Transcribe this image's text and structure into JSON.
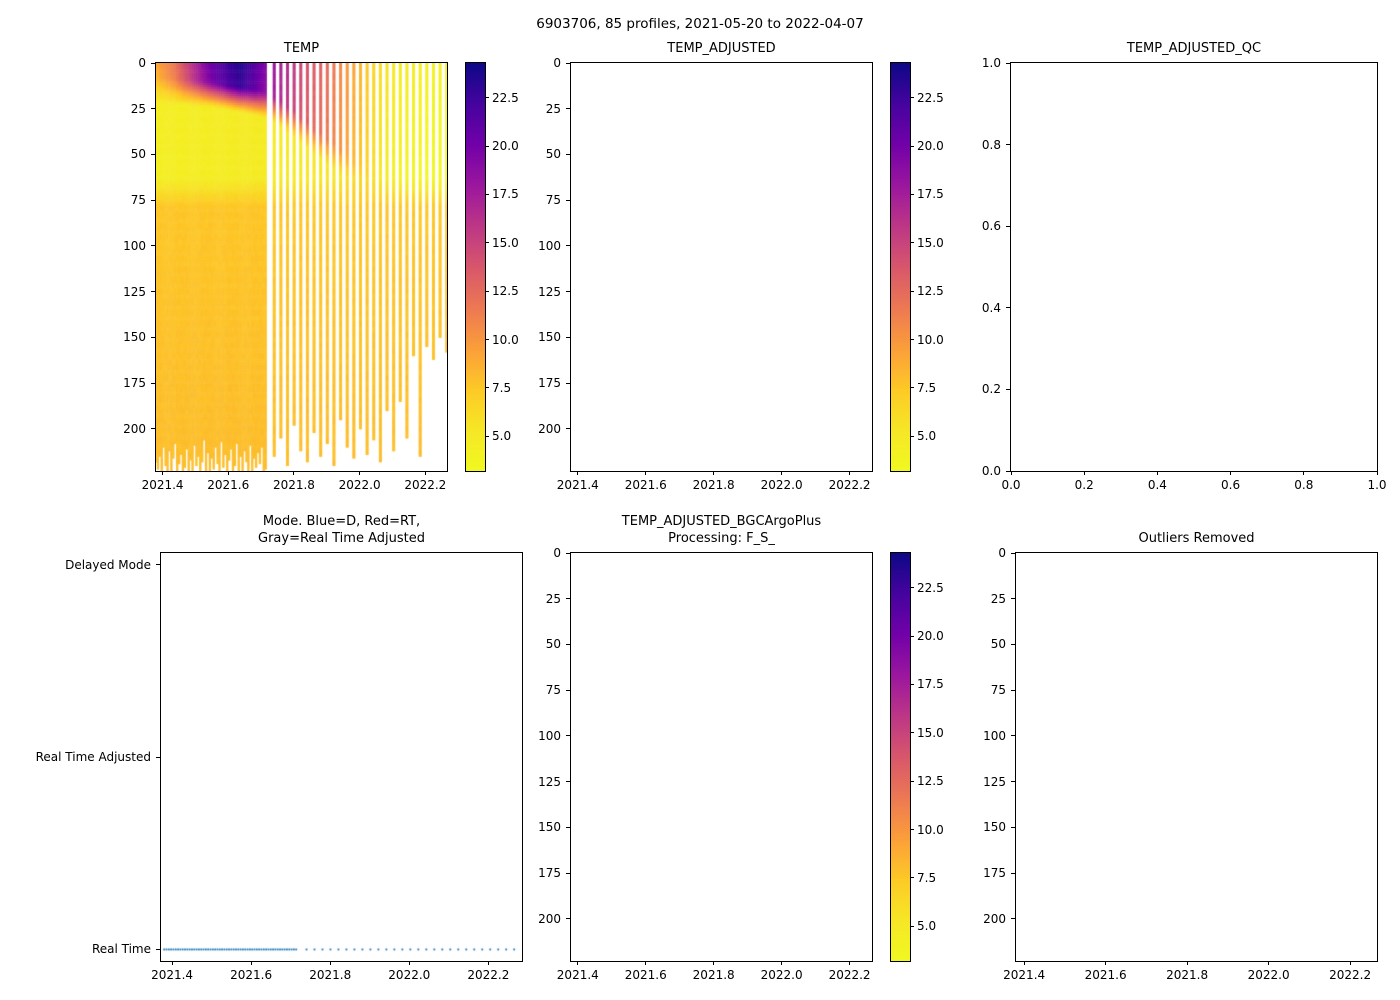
{
  "figure": {
    "title": "6903706, 85 profiles, 2021-05-20 to 2022-04-07",
    "background": "#ffffff"
  },
  "colormap": {
    "name": "plasma_reversed",
    "vmin": 3.2,
    "vmax": 24.3,
    "stops": [
      [
        0.0,
        "#0d0887"
      ],
      [
        0.1,
        "#46039f"
      ],
      [
        0.2,
        "#7201a8"
      ],
      [
        0.3,
        "#9c179e"
      ],
      [
        0.4,
        "#bd3786"
      ],
      [
        0.5,
        "#d8576b"
      ],
      [
        0.6,
        "#ed7953"
      ],
      [
        0.7,
        "#fb9f3a"
      ],
      [
        0.8,
        "#fdca26"
      ],
      [
        0.9,
        "#f6e726"
      ],
      [
        1.0,
        "#f0f921"
      ]
    ]
  },
  "colorbar": {
    "tick_values": [
      5.0,
      7.5,
      10.0,
      12.5,
      15.0,
      17.5,
      20.0,
      22.5
    ],
    "tick_labels": [
      "5.0",
      "7.5",
      "10.0",
      "12.5",
      "15.0",
      "17.5",
      "20.0",
      "22.5"
    ]
  },
  "axes_common": {
    "time_xlim": [
      2021.38,
      2022.266
    ],
    "time_tick_values": [
      2021.4,
      2021.6,
      2021.8,
      2022.0,
      2022.2
    ],
    "time_tick_labels": [
      "2021.4",
      "2021.6",
      "2021.8",
      "2022.0",
      "2022.2"
    ],
    "depth_ylim": [
      0,
      223
    ],
    "depth_tick_values": [
      0,
      25,
      50,
      75,
      100,
      125,
      150,
      175,
      200
    ],
    "depth_tick_labels": [
      "0",
      "25",
      "50",
      "75",
      "100",
      "125",
      "150",
      "175",
      "200"
    ],
    "unit_tick_values": [
      0.0,
      0.2,
      0.4,
      0.6,
      0.8,
      1.0
    ],
    "unit_tick_labels": [
      "0.0",
      "0.2",
      "0.4",
      "0.6",
      "0.8",
      "1.0"
    ]
  },
  "panels": {
    "temp": {
      "title": "TEMP"
    },
    "temp_adjusted": {
      "title": "TEMP_ADJUSTED"
    },
    "temp_adjusted_qc": {
      "title": "TEMP_ADJUSTED_QC"
    },
    "mode": {
      "title_line1": "Mode. Blue=D, Red=RT,",
      "title_line2": "Gray=Real Time Adjusted",
      "categories": [
        "Real Time",
        "Real Time Adjusted",
        "Delayed Mode"
      ],
      "dot_color": "#1f77b4"
    },
    "bgc": {
      "title_line1": "TEMP_ADJUSTED_BGCArgoPlus",
      "title_line2": "Processing: F_S_"
    },
    "outliers": {
      "title": "Outliers Removed"
    }
  },
  "chart_data": [
    {
      "id": "TEMP",
      "type": "heatmap",
      "title": "TEMP",
      "xlim": [
        2021.38,
        2022.266
      ],
      "ylim": [
        223,
        0
      ],
      "colormap": "plasma_reversed",
      "clim": [
        3.2,
        24.3
      ],
      "n_profiles": 85,
      "profiles": {
        "dense": {
          "t_start": 2021.38,
          "t_step": 0.00586,
          "count": 58
        },
        "sparse": {
          "t_start": 2021.74,
          "t_step": 0.0202,
          "count": 27
        },
        "bottom_depths": [
          218,
          222,
          215,
          225,
          210,
          220,
          228,
          212,
          224,
          216,
          208,
          226,
          219,
          214,
          230,
          221,
          211,
          223,
          217,
          227,
          209,
          220,
          215,
          232,
          218,
          206,
          224,
          213,
          228,
          216,
          222,
          210,
          219,
          225,
          207,
          221,
          214,
          229,
          217,
          211,
          226,
          220,
          208,
          223,
          215,
          230,
          212,
          218,
          224,
          209,
          227,
          216,
          221,
          213,
          219,
          210,
          225,
          222,
          215,
          205,
          220,
          198,
          212,
          218,
          202,
          215,
          208,
          220,
          195,
          210,
          216,
          200,
          214,
          206,
          218,
          190,
          212,
          185,
          205,
          160,
          215,
          155,
          162,
          150,
          158
        ]
      },
      "field": {
        "sst": [
          [
            2021.38,
            9.0
          ],
          [
            2021.44,
            12.0
          ],
          [
            2021.5,
            17.0
          ],
          [
            2021.55,
            20.5
          ],
          [
            2021.6,
            22.5
          ],
          [
            2021.64,
            23.5
          ],
          [
            2021.68,
            21.5
          ],
          [
            2021.72,
            19.0
          ],
          [
            2021.78,
            16.5
          ],
          [
            2021.84,
            14.0
          ],
          [
            2021.9,
            12.5
          ],
          [
            2021.95,
            10.5
          ],
          [
            2022.0,
            8.5
          ],
          [
            2022.05,
            6.5
          ],
          [
            2022.1,
            5.2
          ],
          [
            2022.16,
            4.6
          ],
          [
            2022.22,
            4.2
          ],
          [
            2022.27,
            4.0
          ]
        ],
        "warm_layer_depth": [
          [
            2021.38,
            8
          ],
          [
            2021.55,
            10
          ],
          [
            2021.65,
            13
          ],
          [
            2021.72,
            16
          ],
          [
            2021.8,
            26
          ],
          [
            2021.88,
            38
          ],
          [
            2021.95,
            48
          ],
          [
            2022.0,
            55
          ],
          [
            2022.05,
            60
          ],
          [
            2022.27,
            62
          ]
        ],
        "cold_layer_temp": [
          [
            2021.38,
            4.4
          ],
          [
            2021.7,
            4.8
          ],
          [
            2021.9,
            5.4
          ],
          [
            2022.0,
            5.6
          ],
          [
            2022.1,
            4.8
          ],
          [
            2022.27,
            4.2
          ]
        ],
        "cold_layer_bottom": 62,
        "thermocline_thickness": 14,
        "halocline_thickness": 16,
        "deep_temp": 7.6
      }
    },
    {
      "id": "TEMP_ADJUSTED",
      "type": "heatmap",
      "title": "TEMP_ADJUSTED",
      "empty": true,
      "xlim": [
        2021.38,
        2022.266
      ],
      "ylim": [
        223,
        0
      ],
      "clim": [
        3.2,
        24.3
      ]
    },
    {
      "id": "TEMP_ADJUSTED_QC",
      "type": "scatter",
      "title": "TEMP_ADJUSTED_QC",
      "empty": true,
      "xlim": [
        0,
        1
      ],
      "ylim": [
        0,
        1
      ]
    },
    {
      "id": "MODE",
      "type": "scatter",
      "title": "Mode. Blue=D, Red=RT, Gray=Real Time Adjusted",
      "y_categories": [
        "Real Time",
        "Real Time Adjusted",
        "Delayed Mode"
      ],
      "all_points_category": "Real Time",
      "marker_color": "#1f77b4",
      "n_points": 85,
      "xlim": [
        2021.372,
        2022.285
      ]
    },
    {
      "id": "TEMP_ADJUSTED_BGCArgoPlus",
      "type": "heatmap",
      "title": "TEMP_ADJUSTED_BGCArgoPlus Processing: F_S_",
      "empty": true,
      "xlim": [
        2021.38,
        2022.266
      ],
      "ylim": [
        223,
        0
      ],
      "clim": [
        3.2,
        24.3
      ]
    },
    {
      "id": "Outliers Removed",
      "type": "scatter",
      "title": "Outliers Removed",
      "empty": true,
      "xlim": [
        2021.38,
        2022.266
      ],
      "ylim": [
        223,
        0
      ]
    }
  ]
}
